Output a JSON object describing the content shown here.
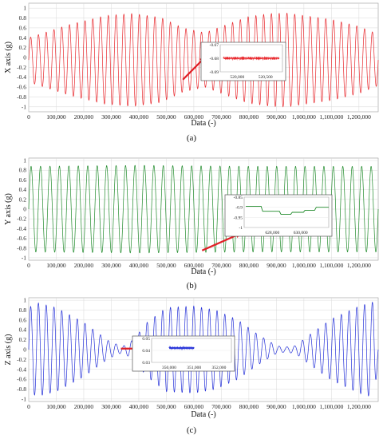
{
  "chart_data": [
    {
      "type": "line",
      "panel_label": "(a)",
      "xlabel": "Data (-)",
      "ylabel": "X axis (g)",
      "xlim": [
        0,
        1270000
      ],
      "ylim": [
        -1.1,
        1.1
      ],
      "x_ticks": [
        "0",
        "100,000",
        "200,000",
        "300,000",
        "400,000",
        "500,000",
        "600,000",
        "700,000",
        "800,000",
        "900,000",
        "1,000,000",
        "1,100,000",
        "1,200,000"
      ],
      "y_ticks": [
        "1",
        "0.8",
        "0.6",
        "0.4",
        "0.2",
        "0",
        "-0.2",
        "-0.4",
        "-0.6",
        "-0.8",
        "-1"
      ],
      "grid": true,
      "series": [
        {
          "color": "#e8262b",
          "cycles": 45,
          "amplitude_envelope": {
            "x": [
              0,
              150000,
              280000,
              380000,
              480000,
              560000,
              640000,
              720000,
              800000,
              880000,
              940000,
              1000000,
              1100000,
              1200000,
              1270000
            ],
            "y": [
              0.45,
              0.72,
              0.9,
              0.94,
              0.86,
              0.65,
              0.55,
              0.72,
              0.88,
              0.94,
              0.95,
              0.9,
              0.82,
              0.68,
              0.52
            ]
          },
          "offset": -0.05
        }
      ],
      "inset": {
        "y_ticks": [
          "-0.67",
          "-0.68",
          "-0.69"
        ],
        "x_ticks": [
          "520,000",
          "520,500"
        ],
        "xlim": [
          519700,
          520800
        ],
        "ylim": [
          -0.69,
          -0.67
        ],
        "value": -0.68,
        "arrow_from": [
          560000,
          -0.45
        ],
        "arrow_to": [
          640000,
          0.0
        ]
      }
    },
    {
      "type": "line",
      "panel_label": "(b)",
      "xlabel": "Data (-)",
      "ylabel": "Y axis (g)",
      "xlim": [
        0,
        1270000
      ],
      "ylim": [
        -1.05,
        1.05
      ],
      "x_ticks": [
        "0",
        "100,000",
        "200,000",
        "300,000",
        "400,000",
        "500,000",
        "600,000",
        "700,000",
        "800,000",
        "900,000",
        "1,000,000",
        "1,100,000",
        "1,200,000"
      ],
      "y_ticks": [
        "1",
        "0.8",
        "0.6",
        "0.4",
        "0.2",
        "0",
        "-0.2",
        "-0.4",
        "-0.6",
        "-0.8",
        "-1"
      ],
      "grid": true,
      "series": [
        {
          "color": "#1f8a2a",
          "cycles": 37,
          "amplitude_envelope": {
            "x": [
              0,
              400000,
              800000,
              1270000
            ],
            "y": [
              0.88,
              0.9,
              0.88,
              0.88
            ]
          },
          "offset": 0.0
        }
      ],
      "inset": {
        "y_ticks": [
          "-0.85",
          "-0.9",
          "-0.95",
          "-1"
        ],
        "x_ticks": [
          "628,000",
          "630,000"
        ],
        "xlim": [
          626000,
          632000
        ],
        "ylim": [
          -1.0,
          -0.85
        ],
        "steps": {
          "x": [
            626000,
            627200,
            628500,
            629300,
            630200,
            631000,
            632000
          ],
          "y": [
            -0.895,
            -0.92,
            -0.935,
            -0.925,
            -0.915,
            -0.9,
            -0.9
          ]
        },
        "arrow_from": [
          630000,
          -0.85
        ],
        "arrow_to": [
          770000,
          -0.5
        ]
      }
    },
    {
      "type": "line",
      "panel_label": "(c)",
      "xlabel": "Data (-)",
      "ylabel": "Z axis (g)",
      "xlim": [
        0,
        1270000
      ],
      "ylim": [
        -1.05,
        1.05
      ],
      "x_ticks": [
        "0",
        "100,000",
        "200,000",
        "300,000",
        "400,000",
        "500,000",
        "600,000",
        "700,000",
        "800,000",
        "900,000",
        "1,000,000",
        "1,100,000",
        "1,200,000"
      ],
      "y_ticks": [
        "1",
        "0.8",
        "0.6",
        "0.4",
        "0.2",
        "0",
        "-0.2",
        "-0.4",
        "-0.6",
        "-0.8",
        "-1"
      ],
      "grid": true,
      "series": [
        {
          "color": "#2430d8",
          "cycles": 45,
          "amplitude_envelope": {
            "x": [
              0,
              30000,
              100000,
              200000,
              290000,
              340000,
              380000,
              430000,
              500000,
              600000,
              680000,
              760000,
              830000,
              900000,
              930000,
              970000,
              1020000,
              1100000,
              1200000,
              1255000,
              1270000
            ],
            "y": [
              0.85,
              0.95,
              0.85,
              0.55,
              0.18,
              0.06,
              0.2,
              0.55,
              0.85,
              0.88,
              0.8,
              0.6,
              0.32,
              0.08,
              0.05,
              0.08,
              0.3,
              0.62,
              0.88,
              0.97,
              0.2
            ]
          },
          "offset": 0.0
        }
      ],
      "inset": {
        "y_ticks": [
          "0.05",
          "0.04",
          "0.03"
        ],
        "x_ticks": [
          "350,000",
          "351,000",
          "352,000"
        ],
        "xlim": [
          349300,
          352500
        ],
        "ylim": [
          0.03,
          0.05
        ],
        "flat": {
          "x0": 350000,
          "x1": 351000,
          "value": 0.042
        },
        "arrow_from": [
          335000,
          0.02
        ],
        "arrow_to": [
          405000,
          0.02
        ]
      }
    }
  ]
}
